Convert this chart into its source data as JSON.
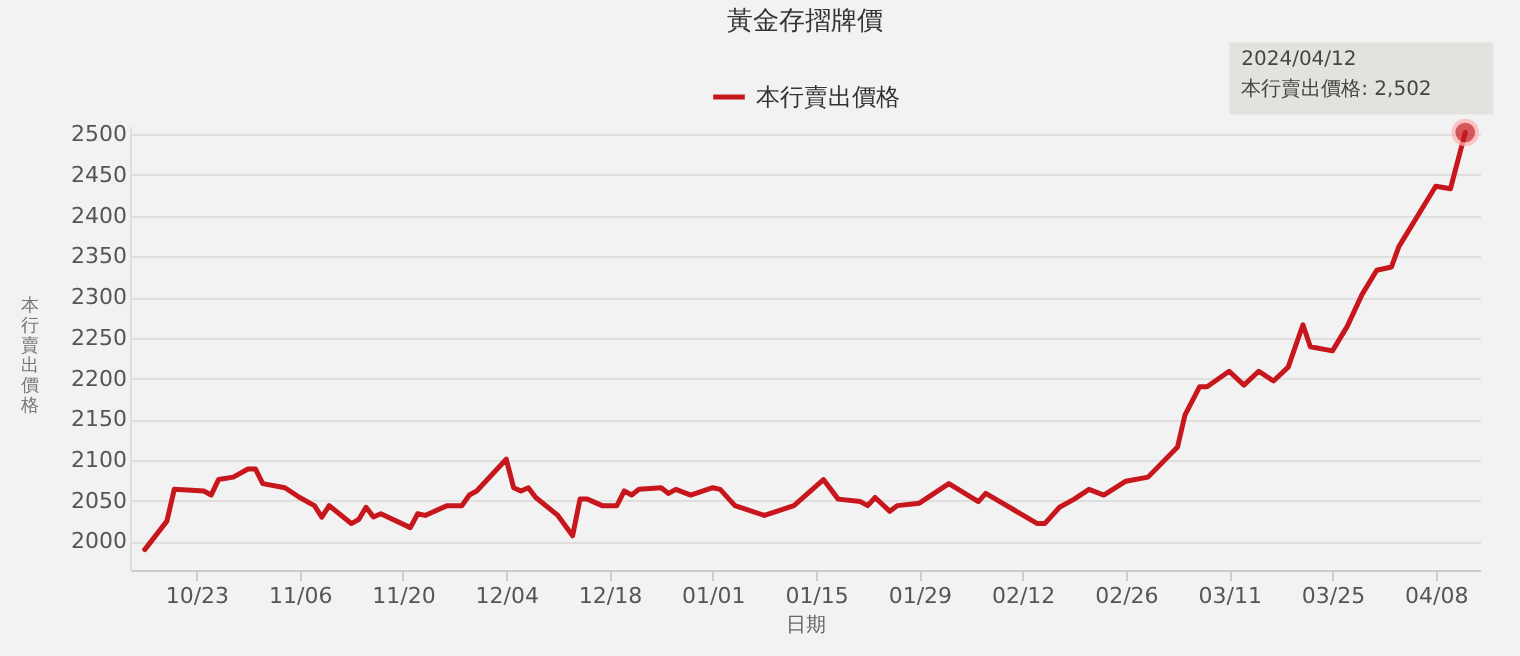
{
  "chart_data": {
    "type": "line",
    "title": "黃金存摺牌價",
    "xlabel": "日期",
    "ylabel": "本行賣出價格",
    "x": [
      "2023-10-16",
      "2023-10-19",
      "2023-10-20",
      "2023-10-24",
      "2023-10-25",
      "2023-10-26",
      "2023-10-28",
      "2023-10-30",
      "2023-10-31",
      "2023-11-01",
      "2023-11-04",
      "2023-11-06",
      "2023-11-08",
      "2023-11-09",
      "2023-11-10",
      "2023-11-13",
      "2023-11-14",
      "2023-11-15",
      "2023-11-16",
      "2023-11-17",
      "2023-11-21",
      "2023-11-22",
      "2023-11-23",
      "2023-11-26",
      "2023-11-28",
      "2023-11-29",
      "2023-11-30",
      "2023-12-04",
      "2023-12-05",
      "2023-12-06",
      "2023-12-07",
      "2023-12-08",
      "2023-12-11",
      "2023-12-13",
      "2023-12-14",
      "2023-12-15",
      "2023-12-17",
      "2023-12-19",
      "2023-12-20",
      "2023-12-21",
      "2023-12-22",
      "2023-12-25",
      "2023-12-26",
      "2023-12-27",
      "2023-12-29",
      "2024-01-01",
      "2024-01-02",
      "2024-01-04",
      "2024-01-08",
      "2024-01-12",
      "2024-01-16",
      "2024-01-18",
      "2024-01-21",
      "2024-01-22",
      "2024-01-23",
      "2024-01-25",
      "2024-01-26",
      "2024-01-29",
      "2024-02-02",
      "2024-02-06",
      "2024-02-07",
      "2024-02-14",
      "2024-02-15",
      "2024-02-17",
      "2024-02-19",
      "2024-02-21",
      "2024-02-23",
      "2024-02-26",
      "2024-02-29",
      "2024-03-04",
      "2024-03-05",
      "2024-03-07",
      "2024-03-08",
      "2024-03-11",
      "2024-03-13",
      "2024-03-15",
      "2024-03-17",
      "2024-03-19",
      "2024-03-21",
      "2024-03-22",
      "2024-03-25",
      "2024-03-27",
      "2024-03-29",
      "2024-03-31",
      "2024-04-02",
      "2024-04-03",
      "2024-04-08",
      "2024-04-10",
      "2024-04-12"
    ],
    "series": [
      {
        "name": "本行賣出價格",
        "color": "#c8161d",
        "values": [
          1990,
          2025,
          2064,
          2062,
          2057,
          2076,
          2079,
          2089,
          2089,
          2071,
          2066,
          2054,
          2044,
          2030,
          2044,
          2022,
          2027,
          2042,
          2030,
          2034,
          2017,
          2034,
          2032,
          2044,
          2044,
          2057,
          2062,
          2101,
          2066,
          2062,
          2066,
          2054,
          2032,
          2007,
          2052,
          2052,
          2044,
          2044,
          2062,
          2057,
          2064,
          2066,
          2059,
          2064,
          2057,
          2066,
          2064,
          2044,
          2032,
          2044,
          2076,
          2052,
          2049,
          2044,
          2054,
          2037,
          2044,
          2047,
          2071,
          2049,
          2059,
          2022,
          2022,
          2042,
          2052,
          2064,
          2057,
          2074,
          2079,
          2116,
          2155,
          2190,
          2190,
          2209,
          2192,
          2209,
          2197,
          2214,
          2266,
          2239,
          2234,
          2264,
          2303,
          2333,
          2337,
          2362,
          2436,
          2433,
          2502
        ]
      }
    ],
    "xlim": [
      "2023-10-14",
      "2024-04-14"
    ],
    "xticks": [
      {
        "value": "2023-10-23",
        "label": "10/23"
      },
      {
        "value": "2023-11-06",
        "label": "11/06"
      },
      {
        "value": "2023-11-20",
        "label": "11/20"
      },
      {
        "value": "2023-12-04",
        "label": "12/04"
      },
      {
        "value": "2023-12-18",
        "label": "12/18"
      },
      {
        "value": "2024-01-01",
        "label": "01/01"
      },
      {
        "value": "2024-01-15",
        "label": "01/15"
      },
      {
        "value": "2024-01-29",
        "label": "01/29"
      },
      {
        "value": "2024-02-12",
        "label": "02/12"
      },
      {
        "value": "2024-02-26",
        "label": "02/26"
      },
      {
        "value": "2024-03-11",
        "label": "03/11"
      },
      {
        "value": "2024-03-25",
        "label": "03/25"
      },
      {
        "value": "2024-04-08",
        "label": "04/08"
      }
    ],
    "ylim": [
      1965,
      2510
    ],
    "yticks": [
      2000,
      2050,
      2100,
      2150,
      2200,
      2250,
      2300,
      2350,
      2400,
      2450,
      2500
    ],
    "grid": "y",
    "legend": "top",
    "marker": "none",
    "annotations": [
      {
        "text": "2024/04/12\n本行賣出價格: 2,502",
        "x": "2024-04-12",
        "y": 2502
      }
    ]
  }
}
